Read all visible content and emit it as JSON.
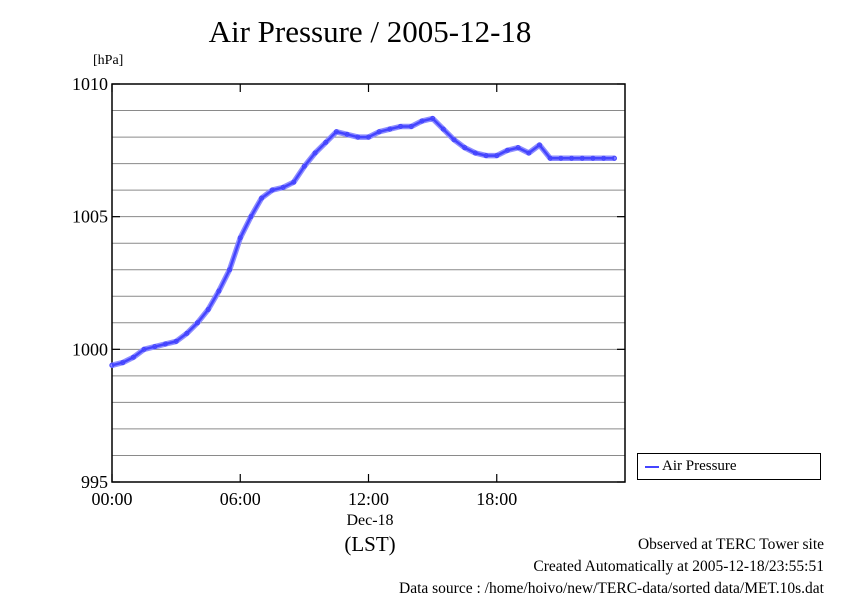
{
  "chart_data": {
    "type": "line",
    "title": "Air Pressure / 2005-12-18",
    "ylabel": "[hPa]",
    "xlabel_date": "Dec-18",
    "xlabel_zone": "(LST)",
    "ylim": [
      995,
      1010
    ],
    "xlim_hours": [
      0,
      24
    ],
    "y_ticks": [
      {
        "value": 995,
        "label": "995"
      },
      {
        "value": 1000,
        "label": "1000"
      },
      {
        "value": 1005,
        "label": "1005"
      },
      {
        "value": 1010,
        "label": "1010"
      }
    ],
    "x_ticks": [
      {
        "value": 0,
        "label": "00:00"
      },
      {
        "value": 6,
        "label": "06:00"
      },
      {
        "value": 12,
        "label": "12:00"
      },
      {
        "value": 18,
        "label": "18:00"
      }
    ],
    "grid": true,
    "legend_position": "right-bottom",
    "series": [
      {
        "name": "Air Pressure",
        "color": "#4444ff",
        "x": [
          0.0,
          0.5,
          1.0,
          1.5,
          2.0,
          2.5,
          3.0,
          3.5,
          4.0,
          4.5,
          5.0,
          5.5,
          6.0,
          6.5,
          7.0,
          7.5,
          8.0,
          8.5,
          9.0,
          9.5,
          10.0,
          10.5,
          11.0,
          11.5,
          12.0,
          12.5,
          13.0,
          13.5,
          14.0,
          14.5,
          15.0,
          15.5,
          16.0,
          16.5,
          17.0,
          17.5,
          18.0,
          18.5,
          19.0,
          19.5,
          20.0,
          20.5,
          21.0,
          21.5,
          22.0,
          22.5,
          23.0,
          23.5
        ],
        "y": [
          999.4,
          999.5,
          999.7,
          1000.0,
          1000.1,
          1000.2,
          1000.3,
          1000.6,
          1001.0,
          1001.5,
          1002.2,
          1003.0,
          1004.2,
          1005.0,
          1005.7,
          1006.0,
          1006.1,
          1006.3,
          1006.9,
          1007.4,
          1007.8,
          1008.2,
          1008.1,
          1008.0,
          1008.0,
          1008.2,
          1008.3,
          1008.4,
          1008.4,
          1008.6,
          1008.7,
          1008.3,
          1007.9,
          1007.6,
          1007.4,
          1007.3,
          1007.3,
          1007.5,
          1007.6,
          1007.4,
          1007.7,
          1007.2,
          1007.2,
          1007.2,
          1007.2,
          1007.2,
          1007.2,
          1007.2
        ]
      }
    ]
  },
  "footer": {
    "observed": "Observed at TERC Tower site",
    "created": "Created Automatically at 2005-12-18/23:55:51",
    "source": "Data source : /home/hoivo/new/TERC-data/sorted  data/MET.10s.dat"
  }
}
